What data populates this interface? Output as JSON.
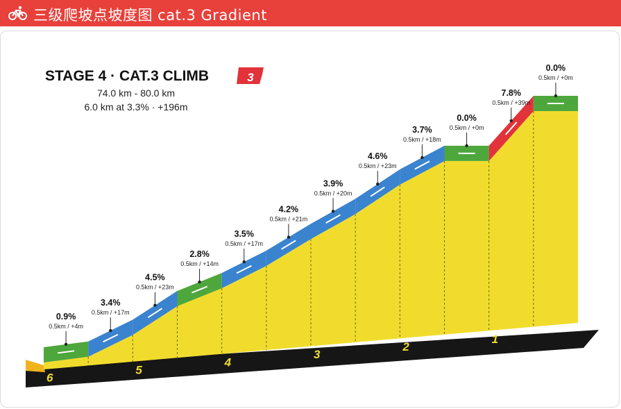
{
  "header": {
    "title": "三级爬坡点坡度图 cat.3 Gradient",
    "icon": "bicycle-icon"
  },
  "chart_data": {
    "type": "area",
    "title": "STAGE 4 · CAT.3 CLIMB",
    "category_badge": "3",
    "range_label": "74.0 km - 80.0 km",
    "summary_label": "6.0 km at 3.3% · +196m",
    "x_axis_ticks": [
      "6",
      "5",
      "4",
      "3",
      "2",
      "1"
    ],
    "segments": [
      {
        "grade": "0.9%",
        "grade_value": 0.9,
        "detail": "0.5km / +4m",
        "color": "green"
      },
      {
        "grade": "3.4%",
        "grade_value": 3.4,
        "detail": "0.5km / +17m",
        "color": "blue"
      },
      {
        "grade": "4.5%",
        "grade_value": 4.5,
        "detail": "0.5km / +23m",
        "color": "blue"
      },
      {
        "grade": "2.8%",
        "grade_value": 2.8,
        "detail": "0.5km / +14m",
        "color": "green"
      },
      {
        "grade": "3.5%",
        "grade_value": 3.5,
        "detail": "0.5km / +17m",
        "color": "blue"
      },
      {
        "grade": "4.2%",
        "grade_value": 4.2,
        "detail": "0.5km / +21m",
        "color": "blue"
      },
      {
        "grade": "3.9%",
        "grade_value": 3.9,
        "detail": "0.5km / +20m",
        "color": "blue"
      },
      {
        "grade": "4.6%",
        "grade_value": 4.6,
        "detail": "0.5km / +23m",
        "color": "blue"
      },
      {
        "grade": "3.7%",
        "grade_value": 3.7,
        "detail": "0.5km / +18m",
        "color": "blue"
      },
      {
        "grade": "0.0%",
        "grade_value": 0.0,
        "detail": "0.5km / +0m",
        "color": "green"
      },
      {
        "grade": "7.8%",
        "grade_value": 7.8,
        "detail": "0.5km / +39m",
        "color": "red"
      },
      {
        "grade": "0.0%",
        "grade_value": 0.0,
        "detail": "0.5km / +0m",
        "color": "green"
      }
    ],
    "colors": {
      "header": "#e8403a",
      "fill": "#f1dc2e",
      "blue": "#3a83cf",
      "green": "#4ea73c",
      "red": "#e2323a",
      "base": "#161616",
      "km_label": "#f1dc2e",
      "badge": "#e2323a"
    }
  }
}
